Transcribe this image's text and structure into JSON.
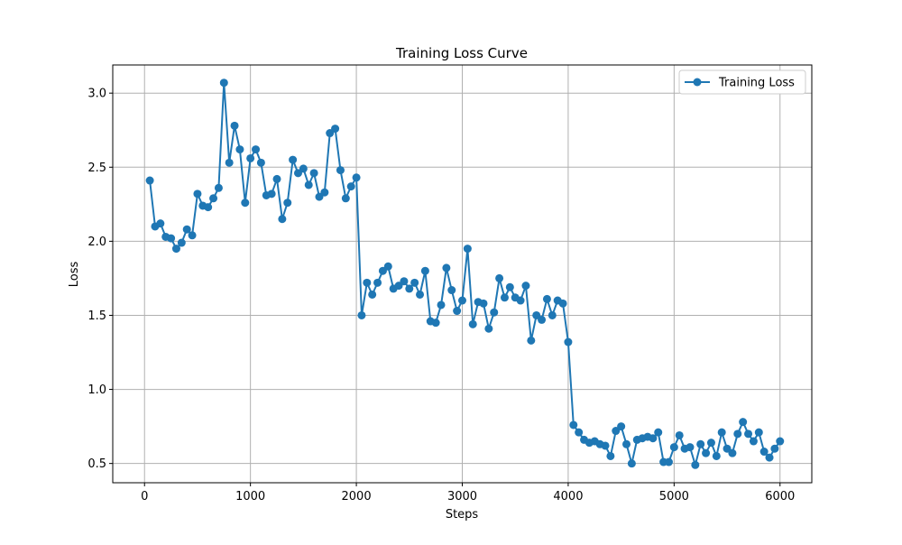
{
  "chart_data": {
    "type": "line",
    "title": "Training Loss Curve",
    "xlabel": "Steps",
    "ylabel": "Loss",
    "xlim": [
      -300,
      6300
    ],
    "ylim": [
      0.37,
      3.19
    ],
    "xticks": [
      0,
      1000,
      2000,
      3000,
      4000,
      5000,
      6000
    ],
    "yticks": [
      0.5,
      1.0,
      1.5,
      2.0,
      2.5,
      3.0
    ],
    "xtick_labels": [
      "0",
      "1000",
      "2000",
      "3000",
      "4000",
      "5000",
      "6000"
    ],
    "ytick_labels": [
      "0.5",
      "1.0",
      "1.5",
      "2.0",
      "2.5",
      "3.0"
    ],
    "grid": true,
    "legend_position": "top-right",
    "series": [
      {
        "name": "Training Loss",
        "color": "#1f77b4",
        "marker": "circle",
        "points": [
          [
            50,
            2.41
          ],
          [
            100,
            2.1
          ],
          [
            150,
            2.12
          ],
          [
            200,
            2.03
          ],
          [
            250,
            2.02
          ],
          [
            300,
            1.95
          ],
          [
            350,
            1.99
          ],
          [
            400,
            2.08
          ],
          [
            450,
            2.04
          ],
          [
            500,
            2.32
          ],
          [
            550,
            2.24
          ],
          [
            600,
            2.23
          ],
          [
            650,
            2.29
          ],
          [
            700,
            2.36
          ],
          [
            750,
            3.07
          ],
          [
            800,
            2.53
          ],
          [
            850,
            2.78
          ],
          [
            900,
            2.62
          ],
          [
            950,
            2.26
          ],
          [
            1000,
            2.56
          ],
          [
            1050,
            2.62
          ],
          [
            1100,
            2.53
          ],
          [
            1150,
            2.31
          ],
          [
            1200,
            2.32
          ],
          [
            1250,
            2.42
          ],
          [
            1300,
            2.15
          ],
          [
            1350,
            2.26
          ],
          [
            1400,
            2.55
          ],
          [
            1450,
            2.46
          ],
          [
            1500,
            2.49
          ],
          [
            1550,
            2.38
          ],
          [
            1600,
            2.46
          ],
          [
            1650,
            2.3
          ],
          [
            1700,
            2.33
          ],
          [
            1750,
            2.73
          ],
          [
            1800,
            2.76
          ],
          [
            1850,
            2.48
          ],
          [
            1900,
            2.29
          ],
          [
            1950,
            2.37
          ],
          [
            2000,
            2.43
          ],
          [
            2050,
            1.5
          ],
          [
            2100,
            1.72
          ],
          [
            2150,
            1.64
          ],
          [
            2200,
            1.72
          ],
          [
            2250,
            1.8
          ],
          [
            2300,
            1.83
          ],
          [
            2350,
            1.68
          ],
          [
            2400,
            1.7
          ],
          [
            2450,
            1.73
          ],
          [
            2500,
            1.68
          ],
          [
            2550,
            1.72
          ],
          [
            2600,
            1.64
          ],
          [
            2650,
            1.8
          ],
          [
            2700,
            1.46
          ],
          [
            2750,
            1.45
          ],
          [
            2800,
            1.57
          ],
          [
            2850,
            1.82
          ],
          [
            2900,
            1.67
          ],
          [
            2950,
            1.53
          ],
          [
            3000,
            1.6
          ],
          [
            3050,
            1.95
          ],
          [
            3100,
            1.44
          ],
          [
            3150,
            1.59
          ],
          [
            3200,
            1.58
          ],
          [
            3250,
            1.41
          ],
          [
            3300,
            1.52
          ],
          [
            3350,
            1.75
          ],
          [
            3400,
            1.62
          ],
          [
            3450,
            1.69
          ],
          [
            3500,
            1.62
          ],
          [
            3550,
            1.6
          ],
          [
            3600,
            1.7
          ],
          [
            3650,
            1.33
          ],
          [
            3700,
            1.5
          ],
          [
            3750,
            1.47
          ],
          [
            3800,
            1.61
          ],
          [
            3850,
            1.5
          ],
          [
            3900,
            1.6
          ],
          [
            3950,
            1.58
          ],
          [
            4000,
            1.32
          ],
          [
            4050,
            0.76
          ],
          [
            4100,
            0.71
          ],
          [
            4150,
            0.66
          ],
          [
            4200,
            0.64
          ],
          [
            4250,
            0.65
          ],
          [
            4300,
            0.63
          ],
          [
            4350,
            0.62
          ],
          [
            4400,
            0.55
          ],
          [
            4450,
            0.72
          ],
          [
            4500,
            0.75
          ],
          [
            4550,
            0.63
          ],
          [
            4600,
            0.5
          ],
          [
            4650,
            0.66
          ],
          [
            4700,
            0.67
          ],
          [
            4750,
            0.68
          ],
          [
            4800,
            0.67
          ],
          [
            4850,
            0.71
          ],
          [
            4900,
            0.51
          ],
          [
            4950,
            0.51
          ],
          [
            5000,
            0.61
          ],
          [
            5050,
            0.69
          ],
          [
            5100,
            0.6
          ],
          [
            5150,
            0.61
          ],
          [
            5200,
            0.49
          ],
          [
            5250,
            0.63
          ],
          [
            5300,
            0.57
          ],
          [
            5350,
            0.64
          ],
          [
            5400,
            0.55
          ],
          [
            5450,
            0.71
          ],
          [
            5500,
            0.6
          ],
          [
            5550,
            0.57
          ],
          [
            5600,
            0.7
          ],
          [
            5650,
            0.78
          ],
          [
            5700,
            0.7
          ],
          [
            5750,
            0.65
          ],
          [
            5800,
            0.71
          ],
          [
            5850,
            0.58
          ],
          [
            5900,
            0.54
          ],
          [
            5950,
            0.6
          ],
          [
            6000,
            0.65
          ]
        ]
      }
    ]
  }
}
